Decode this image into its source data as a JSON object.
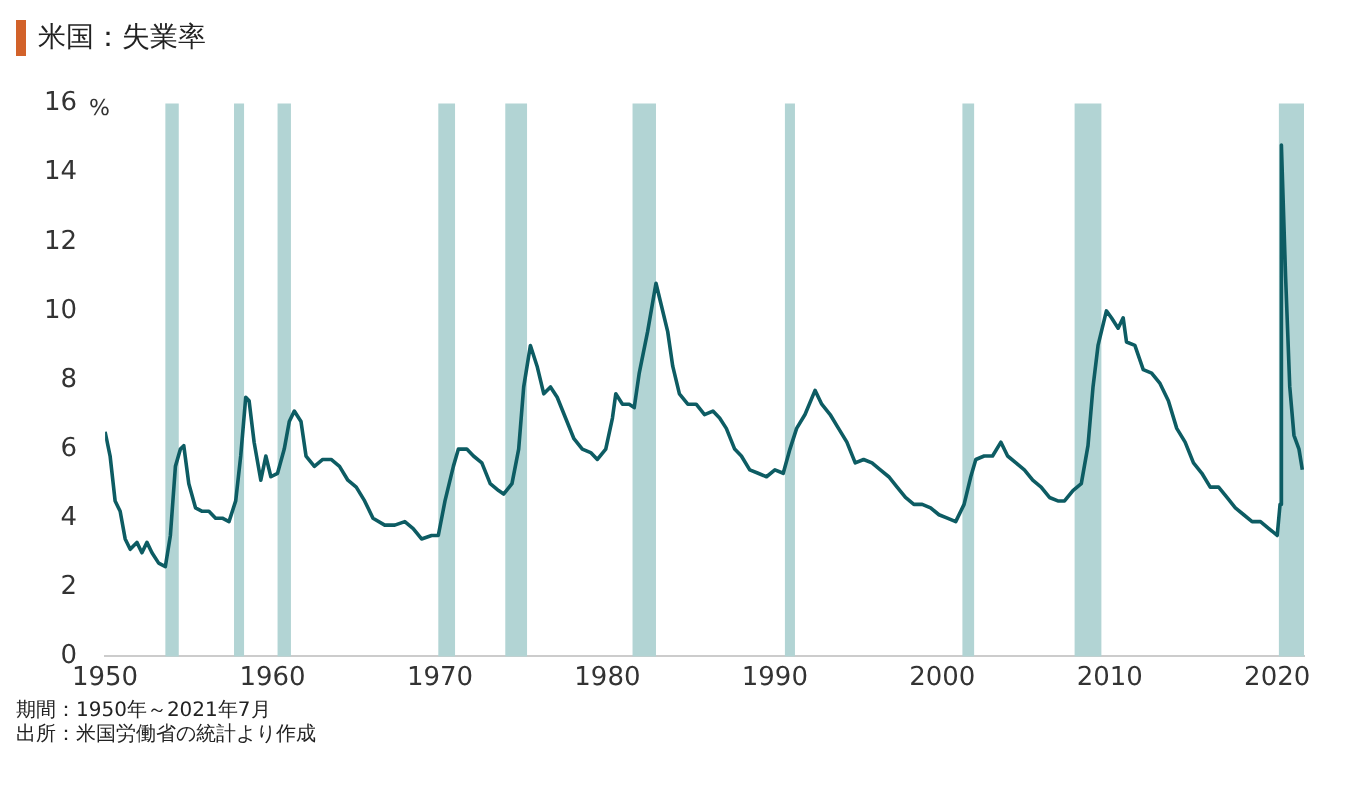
{
  "chart_data": {
    "type": "line",
    "title": "米国：失業率",
    "ylabel": "%",
    "annotations": [
      "期間：1950年～2021年7月",
      "出所：米国労働省の統計より作成"
    ],
    "x": [
      1950.0,
      1950.3,
      1950.6,
      1950.9,
      1951.2,
      1951.5,
      1951.9,
      1952.2,
      1952.5,
      1952.8,
      1953.2,
      1953.6,
      1953.9,
      1954.2,
      1954.5,
      1954.7,
      1955.0,
      1955.4,
      1955.8,
      1956.2,
      1956.6,
      1957.0,
      1957.4,
      1957.8,
      1958.1,
      1958.4,
      1958.6,
      1958.9,
      1959.3,
      1959.6,
      1959.9,
      1960.3,
      1960.7,
      1961.0,
      1961.3,
      1961.7,
      1962.0,
      1962.5,
      1963.0,
      1963.5,
      1964.0,
      1964.5,
      1965.0,
      1965.5,
      1966.0,
      1966.7,
      1967.3,
      1967.9,
      1968.4,
      1968.9,
      1969.5,
      1969.9,
      1970.3,
      1970.8,
      1971.1,
      1971.6,
      1972.0,
      1972.5,
      1973.0,
      1973.5,
      1973.8,
      1974.3,
      1974.7,
      1975.0,
      1975.4,
      1975.8,
      1976.2,
      1976.6,
      1977.0,
      1977.5,
      1978.0,
      1978.5,
      1979.0,
      1979.4,
      1979.9,
      1980.3,
      1980.5,
      1980.9,
      1981.3,
      1981.6,
      1981.9,
      1982.4,
      1982.9,
      1983.2,
      1983.6,
      1983.9,
      1984.3,
      1984.8,
      1985.3,
      1985.8,
      1986.3,
      1986.7,
      1987.1,
      1987.6,
      1988.0,
      1988.5,
      1989.0,
      1989.5,
      1990.0,
      1990.5,
      1990.9,
      1991.3,
      1991.8,
      1992.4,
      1992.8,
      1993.3,
      1993.8,
      1994.3,
      1994.8,
      1995.3,
      1995.8,
      1996.3,
      1996.8,
      1997.3,
      1997.8,
      1998.3,
      1998.8,
      1999.3,
      1999.8,
      2000.3,
      2000.8,
      2001.3,
      2001.7,
      2002.0,
      2002.5,
      2003.0,
      2003.5,
      2003.9,
      2004.4,
      2004.9,
      2005.4,
      2005.9,
      2006.4,
      2006.9,
      2007.3,
      2007.8,
      2008.3,
      2008.7,
      2009.0,
      2009.3,
      2009.8,
      2010.1,
      2010.5,
      2010.8,
      2011.0,
      2011.5,
      2012.0,
      2012.5,
      2013.0,
      2013.5,
      2014.0,
      2014.5,
      2015.0,
      2015.5,
      2016.0,
      2016.5,
      2017.0,
      2017.5,
      2018.0,
      2018.5,
      2019.0,
      2019.5,
      2020.0,
      2020.17,
      2020.25,
      2020.5,
      2020.75,
      2021.0,
      2021.3,
      2021.5
    ],
    "series": [
      {
        "color": "#0d5c63",
        "values": [
          6.5,
          5.8,
          4.5,
          4.2,
          3.4,
          3.1,
          3.3,
          3.0,
          3.3,
          3.0,
          2.7,
          2.6,
          3.5,
          5.5,
          6.0,
          6.1,
          5.0,
          4.3,
          4.2,
          4.2,
          4.0,
          4.0,
          3.9,
          4.5,
          5.8,
          7.5,
          7.4,
          6.2,
          5.1,
          5.8,
          5.2,
          5.3,
          6.0,
          6.8,
          7.1,
          6.8,
          5.8,
          5.5,
          5.7,
          5.7,
          5.5,
          5.1,
          4.9,
          4.5,
          4.0,
          3.8,
          3.8,
          3.9,
          3.7,
          3.4,
          3.5,
          3.5,
          4.5,
          5.5,
          6.0,
          6.0,
          5.8,
          5.6,
          5.0,
          4.8,
          4.7,
          5.0,
          6.0,
          7.8,
          9.0,
          8.4,
          7.6,
          7.8,
          7.5,
          6.9,
          6.3,
          6.0,
          5.9,
          5.7,
          6.0,
          6.9,
          7.6,
          7.3,
          7.3,
          7.2,
          8.2,
          9.4,
          10.8,
          10.2,
          9.4,
          8.4,
          7.6,
          7.3,
          7.3,
          7.0,
          7.1,
          6.9,
          6.6,
          6.0,
          5.8,
          5.4,
          5.3,
          5.2,
          5.4,
          5.3,
          6.0,
          6.6,
          7.0,
          7.7,
          7.3,
          7.0,
          6.6,
          6.2,
          5.6,
          5.7,
          5.6,
          5.4,
          5.2,
          4.9,
          4.6,
          4.4,
          4.4,
          4.3,
          4.1,
          4.0,
          3.9,
          4.4,
          5.2,
          5.7,
          5.8,
          5.8,
          6.2,
          5.8,
          5.6,
          5.4,
          5.1,
          4.9,
          4.6,
          4.5,
          4.5,
          4.8,
          5.0,
          6.1,
          7.8,
          9.0,
          10.0,
          9.8,
          9.5,
          9.8,
          9.1,
          9.0,
          8.3,
          8.2,
          7.9,
          7.4,
          6.6,
          6.2,
          5.6,
          5.3,
          4.9,
          4.9,
          4.6,
          4.3,
          4.1,
          3.9,
          3.9,
          3.7,
          3.5,
          4.4,
          14.8,
          11.0,
          7.8,
          6.4,
          6.0,
          5.4
        ]
      }
    ],
    "xlim": [
      1950,
      2021.6
    ],
    "xticks": [
      1950,
      1960,
      1970,
      1980,
      1990,
      2000,
      2010,
      2020
    ],
    "ylim": [
      0,
      16
    ],
    "yticks": [
      0,
      2,
      4,
      6,
      8,
      10,
      12,
      14,
      16
    ],
    "grid": false,
    "legend": false,
    "marker": "none",
    "line_style": "solid",
    "bands": [
      {
        "axis": "x",
        "from": 1953.6,
        "to": 1954.4,
        "color": "#b2d4d4"
      },
      {
        "axis": "x",
        "from": 1957.7,
        "to": 1958.3,
        "color": "#b2d4d4"
      },
      {
        "axis": "x",
        "from": 1960.3,
        "to": 1961.1,
        "color": "#b2d4d4"
      },
      {
        "axis": "x",
        "from": 1969.9,
        "to": 1970.9,
        "color": "#b2d4d4"
      },
      {
        "axis": "x",
        "from": 1973.9,
        "to": 1975.2,
        "color": "#b2d4d4"
      },
      {
        "axis": "x",
        "from": 1981.5,
        "to": 1982.9,
        "color": "#b2d4d4"
      },
      {
        "axis": "x",
        "from": 1990.6,
        "to": 1991.2,
        "color": "#b2d4d4"
      },
      {
        "axis": "x",
        "from": 2001.2,
        "to": 2001.9,
        "color": "#b2d4d4"
      },
      {
        "axis": "x",
        "from": 2007.9,
        "to": 2009.5,
        "color": "#b2d4d4"
      },
      {
        "axis": "x",
        "from": 2020.1,
        "to": 2021.6,
        "color": "#b2d4d4"
      }
    ]
  }
}
